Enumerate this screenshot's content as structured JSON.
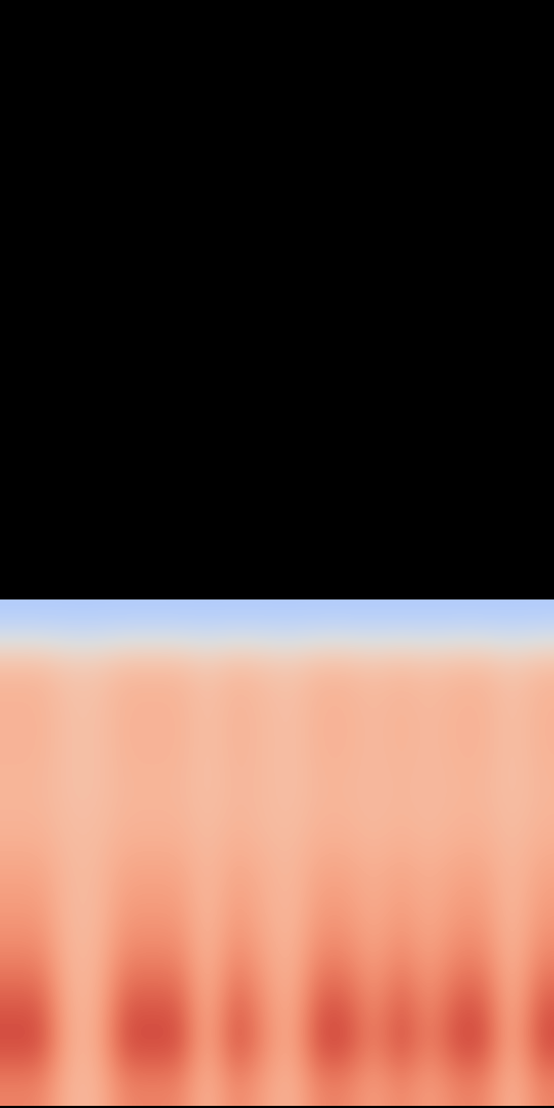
{
  "chart_data": {
    "type": "heatmap",
    "color": "coolwarm",
    "tick_labels": false,
    "color_range": [
      0,
      1
    ],
    "cells": [
      [
        0.35,
        0.35,
        0.35,
        0.35,
        0.35,
        0.35,
        0.35,
        0.35,
        0.35,
        0.35,
        0.35,
        0.35,
        0.35,
        0.35,
        0.35,
        0.35,
        0.35,
        0.35,
        0.35,
        0.35
      ],
      [
        0.66,
        0.66,
        0.62,
        0.62,
        0.66,
        0.66,
        0.66,
        0.62,
        0.66,
        0.64,
        0.62,
        0.66,
        0.66,
        0.64,
        0.66,
        0.64,
        0.66,
        0.66,
        0.62,
        0.66
      ],
      [
        0.68,
        0.68,
        0.64,
        0.64,
        0.68,
        0.68,
        0.68,
        0.64,
        0.68,
        0.66,
        0.64,
        0.68,
        0.68,
        0.66,
        0.68,
        0.66,
        0.68,
        0.68,
        0.64,
        0.68
      ],
      [
        0.68,
        0.68,
        0.64,
        0.64,
        0.68,
        0.68,
        0.68,
        0.64,
        0.68,
        0.66,
        0.64,
        0.68,
        0.68,
        0.66,
        0.68,
        0.66,
        0.68,
        0.68,
        0.64,
        0.68
      ],
      [
        0.67,
        0.67,
        0.64,
        0.64,
        0.67,
        0.67,
        0.67,
        0.64,
        0.67,
        0.66,
        0.64,
        0.67,
        0.67,
        0.66,
        0.67,
        0.66,
        0.67,
        0.67,
        0.64,
        0.67
      ],
      [
        0.68,
        0.68,
        0.65,
        0.65,
        0.68,
        0.68,
        0.68,
        0.65,
        0.68,
        0.66,
        0.65,
        0.68,
        0.68,
        0.66,
        0.68,
        0.66,
        0.68,
        0.68,
        0.65,
        0.68
      ],
      [
        0.72,
        0.72,
        0.66,
        0.66,
        0.72,
        0.72,
        0.72,
        0.66,
        0.72,
        0.69,
        0.66,
        0.72,
        0.72,
        0.69,
        0.72,
        0.69,
        0.72,
        0.72,
        0.66,
        0.72
      ],
      [
        0.75,
        0.75,
        0.66,
        0.66,
        0.75,
        0.75,
        0.75,
        0.66,
        0.75,
        0.7,
        0.66,
        0.75,
        0.75,
        0.7,
        0.75,
        0.7,
        0.75,
        0.75,
        0.66,
        0.75
      ],
      [
        0.8,
        0.8,
        0.67,
        0.67,
        0.8,
        0.8,
        0.8,
        0.67,
        0.8,
        0.73,
        0.67,
        0.8,
        0.8,
        0.73,
        0.8,
        0.73,
        0.8,
        0.8,
        0.67,
        0.8
      ],
      [
        0.88,
        0.88,
        0.68,
        0.68,
        0.88,
        0.88,
        0.88,
        0.68,
        0.88,
        0.77,
        0.68,
        0.88,
        0.88,
        0.77,
        0.88,
        0.77,
        0.88,
        0.88,
        0.68,
        0.88
      ],
      [
        0.93,
        0.93,
        0.69,
        0.69,
        0.93,
        0.93,
        0.93,
        0.69,
        0.93,
        0.8,
        0.69,
        0.93,
        0.93,
        0.8,
        0.93,
        0.8,
        0.93,
        0.93,
        0.69,
        0.93
      ],
      [
        0.8,
        0.8,
        0.67,
        0.67,
        0.8,
        0.8,
        0.8,
        0.67,
        0.8,
        0.73,
        0.67,
        0.8,
        0.8,
        0.73,
        0.8,
        0.73,
        0.8,
        0.8,
        0.67,
        0.8
      ]
    ]
  }
}
